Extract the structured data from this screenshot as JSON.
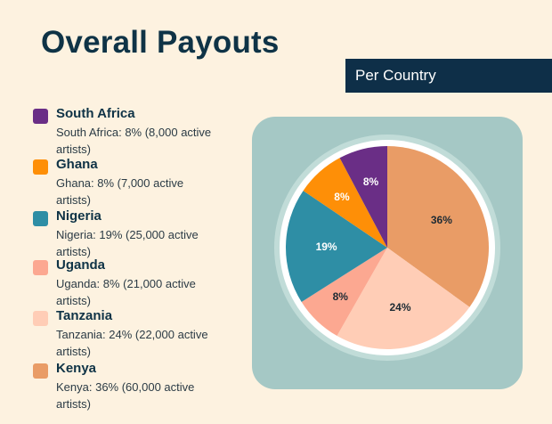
{
  "page": {
    "title": "Overall Payouts",
    "banner": "Per Country"
  },
  "legend": [
    {
      "name": "South Africa",
      "desc": "South Africa: 8% (8,000 active artists)",
      "color": "#6a2e86"
    },
    {
      "name": "Ghana",
      "desc": "Ghana: 8% (7,000 active artists)",
      "color": "#fe8f07"
    },
    {
      "name": "Nigeria",
      "desc": "Nigeria: 19% (25,000 active artists)",
      "color": "#2e8ea5"
    },
    {
      "name": "Uganda",
      "desc": "Uganda: 8% (21,000 active artists)",
      "color": "#fca891"
    },
    {
      "name": "Tanzania",
      "desc": "Tanzania: 24% (22,000 active artists)",
      "color": "#ffcdb6"
    },
    {
      "name": "Kenya",
      "desc": "Kenya: 36% (60,000 active artists)",
      "color": "#e99c66"
    }
  ],
  "chart_data": {
    "type": "pie",
    "categories": [
      "Kenya",
      "Tanzania",
      "Uganda",
      "Nigeria",
      "Ghana",
      "South Africa"
    ],
    "values": [
      36,
      24,
      8,
      19,
      8,
      8
    ],
    "labels": [
      "36%",
      "24%",
      "8%",
      "19%",
      "8%",
      "8%"
    ],
    "colors": [
      "#e99c66",
      "#ffcdb6",
      "#fca891",
      "#2e8ea5",
      "#fe8f07",
      "#6a2e86"
    ],
    "label_colors": [
      "#1d2a33",
      "#1d2a33",
      "#1d2a33",
      "#ffffff",
      "#ffffff",
      "#ffffff"
    ],
    "start": "12 o'clock, clockwise"
  }
}
